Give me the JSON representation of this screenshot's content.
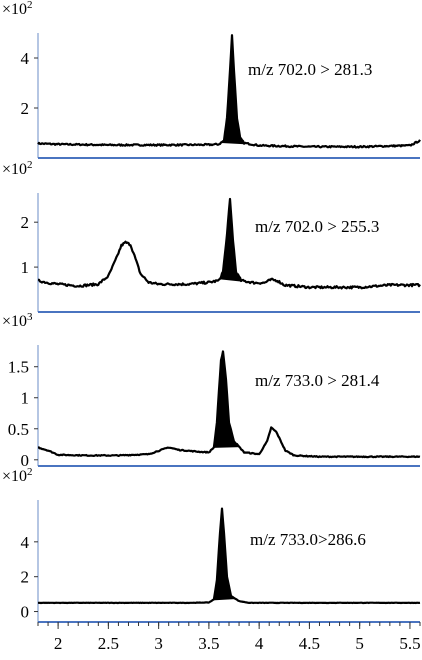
{
  "chart_data": [
    {
      "type": "line",
      "multiplier_base": "×10",
      "multiplier_exp": "2",
      "annotation": "m/z 702.0 > 281.3",
      "ylim": [
        0,
        5.0
      ],
      "yticks": [
        {
          "value": 4,
          "label": "4"
        },
        {
          "value": 2,
          "label": "2"
        }
      ],
      "xlim": [
        1.8,
        5.6
      ],
      "show_xticklabels": false,
      "baseline_noise": 0.06,
      "points": [
        [
          1.8,
          0.58
        ],
        [
          2.0,
          0.55
        ],
        [
          2.5,
          0.52
        ],
        [
          3.0,
          0.52
        ],
        [
          3.5,
          0.53
        ],
        [
          3.6,
          0.55
        ],
        [
          3.65,
          0.7
        ],
        [
          3.68,
          1.6
        ],
        [
          3.71,
          3.5
        ],
        [
          3.73,
          4.9
        ],
        [
          3.75,
          3.5
        ],
        [
          3.78,
          1.6
        ],
        [
          3.81,
          0.8
        ],
        [
          3.85,
          0.6
        ],
        [
          4.0,
          0.5
        ],
        [
          4.5,
          0.45
        ],
        [
          5.0,
          0.45
        ],
        [
          5.5,
          0.5
        ],
        [
          5.6,
          0.7
        ]
      ],
      "filled_peak": {
        "from": 3.62,
        "to": 3.86
      }
    },
    {
      "type": "line",
      "multiplier_base": "×10",
      "multiplier_exp": "2",
      "annotation": "m/z 702.0 > 255.3",
      "ylim": [
        0,
        2.65
      ],
      "yticks": [
        {
          "value": 2,
          "label": "2"
        },
        {
          "value": 1,
          "label": "1"
        }
      ],
      "xlim": [
        1.8,
        5.6
      ],
      "show_xticklabels": false,
      "baseline_noise": 0.05,
      "points": [
        [
          1.8,
          0.7
        ],
        [
          1.9,
          0.65
        ],
        [
          2.0,
          0.62
        ],
        [
          2.2,
          0.58
        ],
        [
          2.4,
          0.62
        ],
        [
          2.5,
          0.8
        ],
        [
          2.58,
          1.2
        ],
        [
          2.63,
          1.48
        ],
        [
          2.67,
          1.55
        ],
        [
          2.72,
          1.5
        ],
        [
          2.76,
          1.25
        ],
        [
          2.82,
          0.85
        ],
        [
          2.9,
          0.66
        ],
        [
          3.0,
          0.62
        ],
        [
          3.3,
          0.62
        ],
        [
          3.5,
          0.66
        ],
        [
          3.6,
          0.7
        ],
        [
          3.64,
          0.9
        ],
        [
          3.67,
          1.5
        ],
        [
          3.71,
          2.5
        ],
        [
          3.74,
          1.6
        ],
        [
          3.77,
          0.9
        ],
        [
          3.82,
          0.7
        ],
        [
          3.95,
          0.65
        ],
        [
          4.05,
          0.65
        ],
        [
          4.12,
          0.72
        ],
        [
          4.18,
          0.7
        ],
        [
          4.25,
          0.6
        ],
        [
          4.5,
          0.55
        ],
        [
          5.0,
          0.55
        ],
        [
          5.3,
          0.6
        ],
        [
          5.6,
          0.6
        ]
      ],
      "filled_peak": {
        "from": 3.61,
        "to": 3.82
      }
    },
    {
      "type": "line",
      "multiplier_base": "×10",
      "multiplier_exp": "3",
      "annotation": "m/z 733.0 > 281.4",
      "ylim": [
        -0.1,
        1.85
      ],
      "yticks": [
        {
          "value": 1.5,
          "label": "1.5"
        },
        {
          "value": 1,
          "label": "1"
        },
        {
          "value": 0.5,
          "label": "0.5"
        },
        {
          "value": 0,
          "label": "0"
        }
      ],
      "xlim": [
        1.8,
        5.6
      ],
      "show_xticklabels": false,
      "baseline_noise": 0.015,
      "points": [
        [
          1.8,
          0.2
        ],
        [
          1.9,
          0.15
        ],
        [
          2.0,
          0.08
        ],
        [
          2.3,
          0.07
        ],
        [
          2.6,
          0.07
        ],
        [
          2.9,
          0.09
        ],
        [
          3.1,
          0.2
        ],
        [
          3.2,
          0.16
        ],
        [
          3.4,
          0.13
        ],
        [
          3.5,
          0.12
        ],
        [
          3.55,
          0.2
        ],
        [
          3.58,
          0.6
        ],
        [
          3.62,
          1.6
        ],
        [
          3.64,
          1.75
        ],
        [
          3.67,
          1.3
        ],
        [
          3.7,
          0.6
        ],
        [
          3.75,
          0.3
        ],
        [
          3.85,
          0.12
        ],
        [
          4.0,
          0.09
        ],
        [
          4.08,
          0.3
        ],
        [
          4.12,
          0.52
        ],
        [
          4.17,
          0.45
        ],
        [
          4.2,
          0.35
        ],
        [
          4.26,
          0.15
        ],
        [
          4.35,
          0.07
        ],
        [
          4.6,
          0.05
        ],
        [
          5.0,
          0.05
        ],
        [
          5.6,
          0.05
        ]
      ],
      "filled_peak": {
        "from": 3.55,
        "to": 3.8
      }
    },
    {
      "type": "line",
      "multiplier_base": "×10",
      "multiplier_exp": "2",
      "annotation": "m/z 733.0>286.6",
      "ylim": [
        -0.6,
        6.4
      ],
      "yticks": [
        {
          "value": 4,
          "label": "4"
        },
        {
          "value": 2,
          "label": "2"
        },
        {
          "value": 0,
          "label": "0"
        }
      ],
      "xlim": [
        1.8,
        5.6
      ],
      "show_xticklabels": true,
      "xticks": [
        {
          "value": 2,
          "label": "2"
        },
        {
          "value": 2.5,
          "label": "2.5"
        },
        {
          "value": 3,
          "label": "3"
        },
        {
          "value": 3.5,
          "label": "3.5"
        },
        {
          "value": 4,
          "label": "4"
        },
        {
          "value": 4.5,
          "label": "4.5"
        },
        {
          "value": 5,
          "label": "5"
        },
        {
          "value": 5.5,
          "label": "5.5"
        }
      ],
      "baseline_noise": 0.02,
      "points": [
        [
          1.8,
          0.5
        ],
        [
          2.5,
          0.5
        ],
        [
          3.3,
          0.5
        ],
        [
          3.5,
          0.52
        ],
        [
          3.55,
          0.7
        ],
        [
          3.58,
          1.8
        ],
        [
          3.61,
          4.5
        ],
        [
          3.63,
          5.9
        ],
        [
          3.65,
          4.5
        ],
        [
          3.68,
          2.0
        ],
        [
          3.72,
          0.9
        ],
        [
          3.8,
          0.6
        ],
        [
          3.9,
          0.5
        ],
        [
          4.5,
          0.5
        ],
        [
          5.6,
          0.5
        ]
      ],
      "filled_peak": {
        "from": 3.54,
        "to": 3.76
      }
    }
  ]
}
